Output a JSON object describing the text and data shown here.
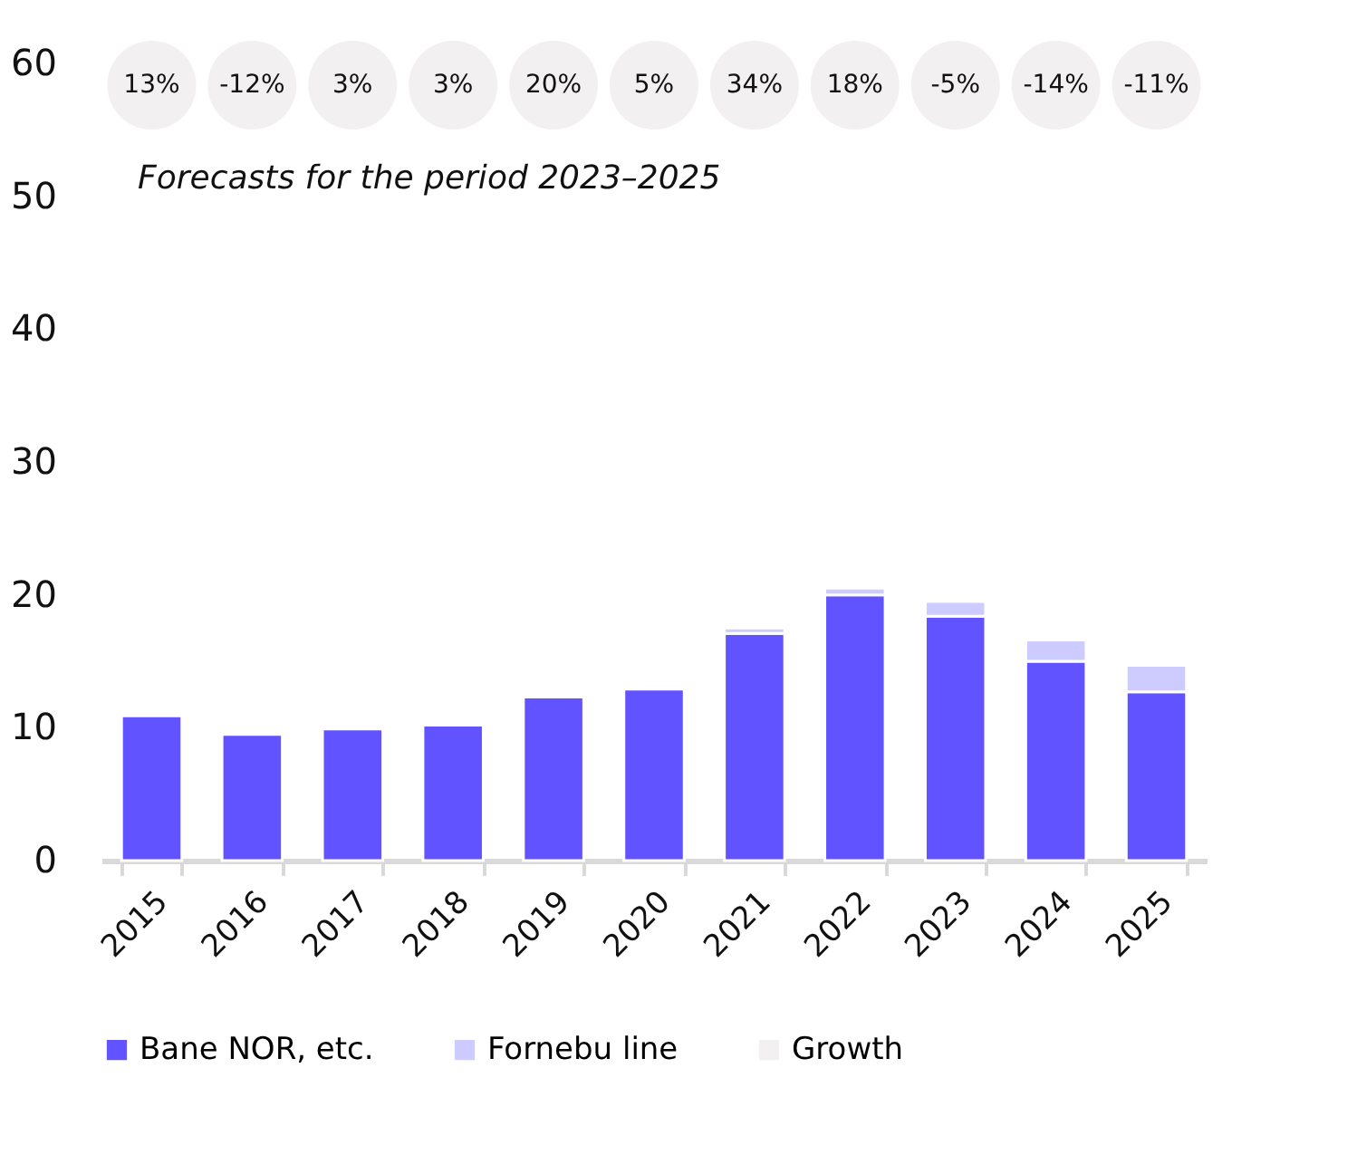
{
  "chart_data": {
    "type": "bar",
    "stacked": true,
    "categories": [
      "2015",
      "2016",
      "2017",
      "2018",
      "2019",
      "2020",
      "2021",
      "2022",
      "2023",
      "2024",
      "2025"
    ],
    "series": [
      {
        "name": "Bane NOR, etc.",
        "color": "#6153ff",
        "values": [
          10.9,
          9.5,
          9.9,
          10.2,
          12.3,
          12.9,
          17.1,
          20.0,
          18.4,
          15.0,
          12.7
        ]
      },
      {
        "name": "Fornebu line",
        "color": "#cdcbff",
        "values": [
          null,
          null,
          null,
          null,
          null,
          null,
          0.4,
          0.5,
          1.1,
          1.6,
          2.0
        ]
      },
      {
        "name": "Growth",
        "type": "scatter",
        "color": "#f2f0f0",
        "values": [
          null,
          null,
          null,
          null,
          null,
          null,
          null,
          null,
          null,
          null,
          null
        ]
      }
    ],
    "ylim": [
      0,
      60
    ],
    "yticks": [
      0,
      10,
      20,
      30,
      40,
      50,
      60
    ],
    "grid": false,
    "legend": "bottom",
    "annotations": [
      "13%",
      "-12%",
      "3%",
      "3%",
      "20%",
      "5%",
      "34%",
      "18%",
      "-5%",
      "-14%",
      "-11%",
      "Forecasts for the period 2023–2025"
    ]
  }
}
